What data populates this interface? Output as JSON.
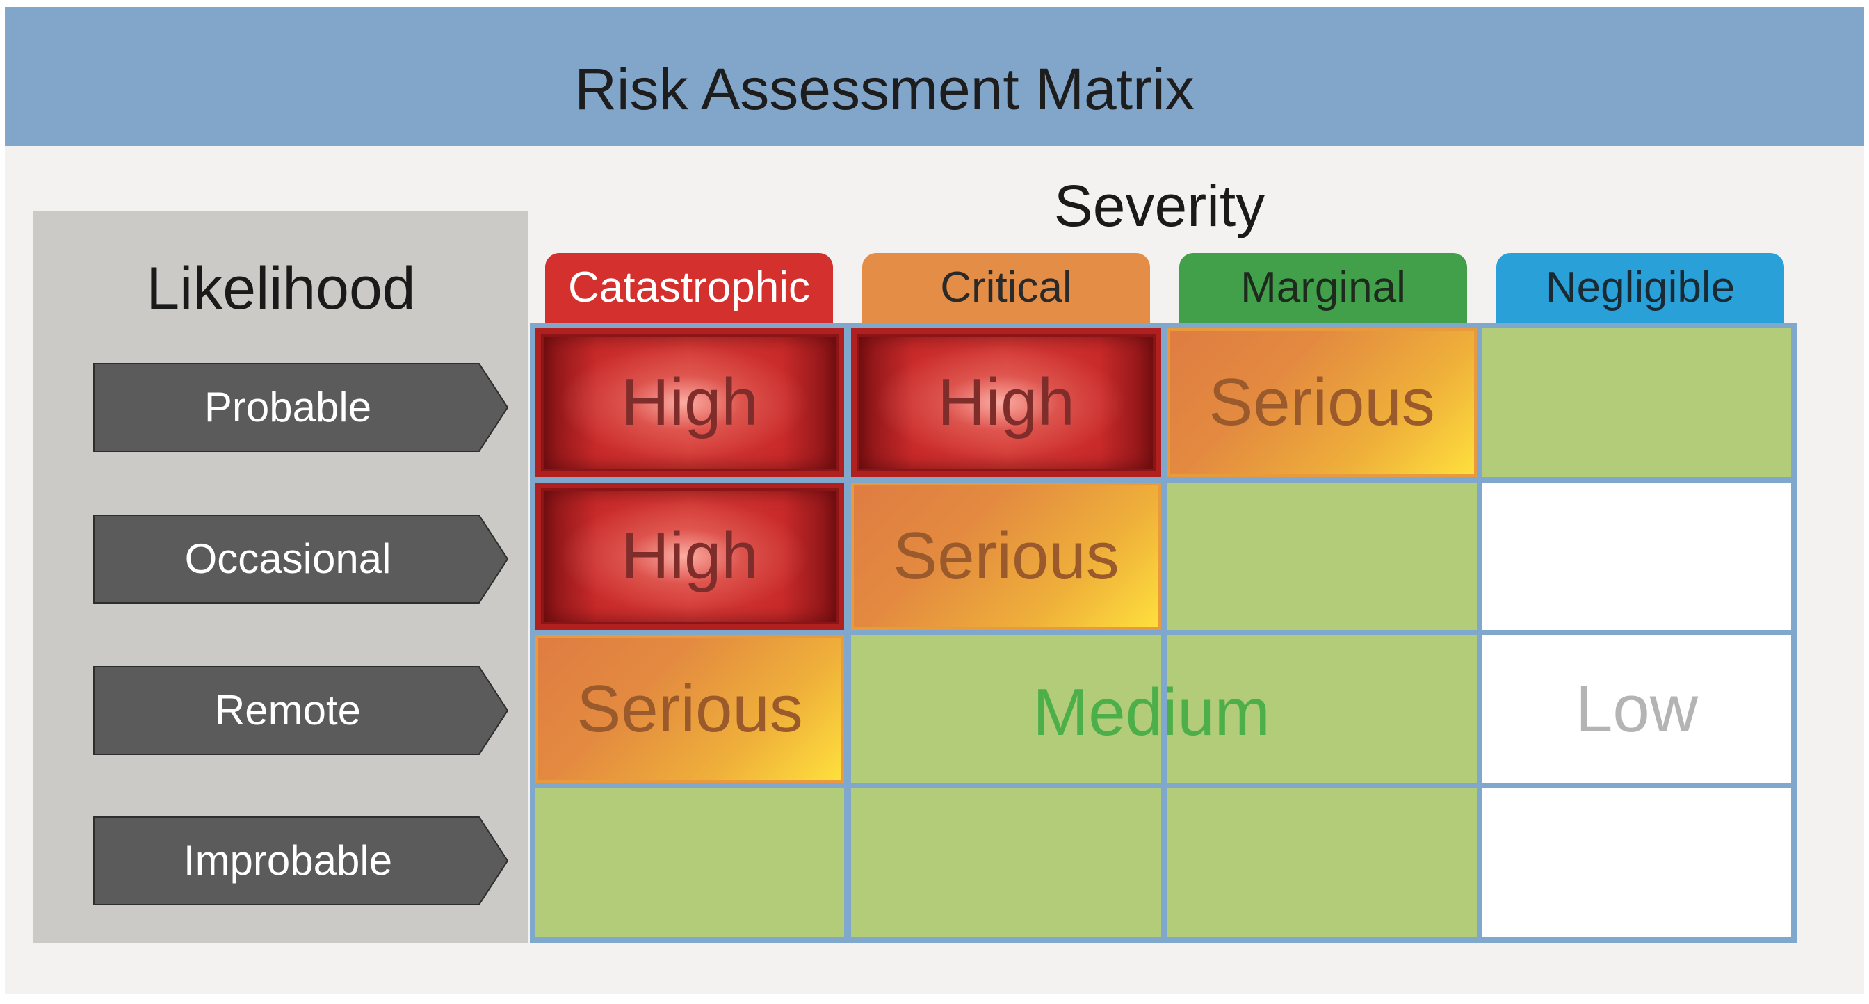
{
  "title": "Risk Assessment Matrix",
  "likelihood": {
    "label": "Likelihood",
    "items": [
      "Probable",
      "Occasional",
      "Remote",
      "Improbable"
    ]
  },
  "severity": {
    "label": "Severity",
    "columns": [
      {
        "label": "Catastrophic",
        "color": "#d4302d",
        "text_color": "#ffffff"
      },
      {
        "label": "Critical",
        "color": "#e38d46",
        "text_color": "#2a2a2a"
      },
      {
        "label": "Marginal",
        "color": "#43a04a",
        "text_color": "#1f2a1f"
      },
      {
        "label": "Negligible",
        "color": "#2aa0d8",
        "text_color": "#1a2a33"
      }
    ]
  },
  "levels": {
    "high": "High",
    "serious": "Serious",
    "medium": "Medium",
    "low": "Low"
  },
  "matrix": [
    [
      "high",
      "high",
      "serious",
      "medium"
    ],
    [
      "high",
      "serious",
      "medium",
      "low"
    ],
    [
      "serious",
      "medium",
      "medium",
      "low"
    ],
    [
      "medium",
      "medium",
      "medium",
      "low"
    ]
  ],
  "colors": {
    "title_bar": "#82a5ca",
    "grid_lines": "#80a8cc",
    "medium_fill": "#b2cc7a",
    "medium_text": "#4caf4a",
    "low_fill": "#ffffff",
    "low_text": "#b4b4b4",
    "arrow_fill": "#5b5b5b"
  }
}
